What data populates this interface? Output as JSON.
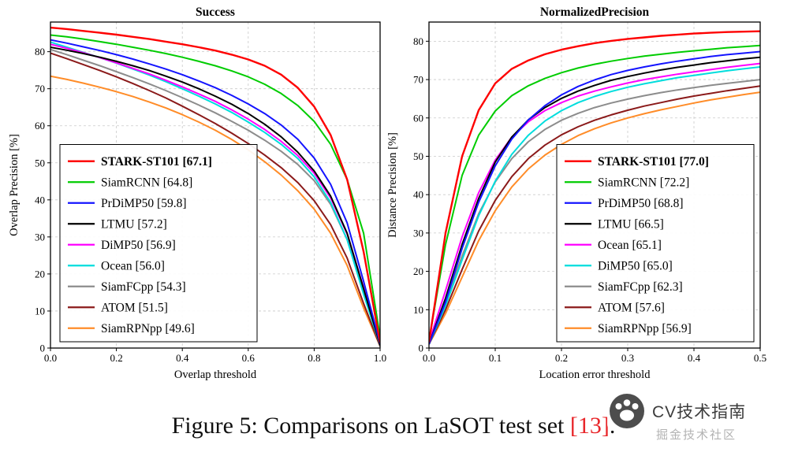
{
  "caption": {
    "prefix": "Figure 5: Comparisons on LaSOT test set ",
    "citation": "[13]",
    "suffix": ".",
    "citation_color": "#e8262a"
  },
  "watermark": {
    "title": "CV技术指南",
    "subtitle": "掘金技术社区"
  },
  "chart_data": [
    {
      "type": "line",
      "title": "Success",
      "xlabel": "Overlap threshold",
      "ylabel": "Overlap Precision [%]",
      "xlim": [
        0,
        1.0
      ],
      "ylim": [
        0,
        88
      ],
      "grid": true,
      "legend_position": "lower-left",
      "xtick_values": [
        0,
        0.2,
        0.4,
        0.6,
        0.8,
        1.0
      ],
      "xtick_labels": [
        "0.0",
        "0.2",
        "0.4",
        "0.6",
        "0.8",
        "1.0"
      ],
      "ytick_values": [
        0,
        10,
        20,
        30,
        40,
        50,
        60,
        70,
        80
      ],
      "ytick_labels": [
        "0",
        "10",
        "20",
        "30",
        "40",
        "50",
        "60",
        "70",
        "80"
      ],
      "x": [
        0,
        0.05,
        0.1,
        0.15,
        0.2,
        0.25,
        0.3,
        0.35,
        0.4,
        0.45,
        0.5,
        0.55,
        0.6,
        0.65,
        0.7,
        0.75,
        0.8,
        0.85,
        0.9,
        0.95,
        1.0
      ],
      "series": [
        {
          "name": "STARK-ST101",
          "score": "67.1",
          "color": "#fe0000",
          "bold": true,
          "values": [
            86.5,
            86.1,
            85.6,
            85.1,
            84.6,
            84.0,
            83.4,
            82.7,
            82.0,
            81.2,
            80.3,
            79.2,
            77.9,
            76.2,
            73.8,
            70.3,
            65.2,
            57.5,
            45.5,
            26.0,
            1.5
          ]
        },
        {
          "name": "SiamRCNN",
          "score": "64.8",
          "color": "#00cc00",
          "bold": false,
          "values": [
            84.5,
            84.0,
            83.4,
            82.7,
            82.0,
            81.2,
            80.4,
            79.5,
            78.5,
            77.4,
            76.2,
            74.8,
            73.2,
            71.2,
            68.7,
            65.5,
            61.2,
            55.0,
            45.5,
            31.0,
            3.0
          ]
        },
        {
          "name": "PrDiMP50",
          "score": "59.8",
          "color": "#1414ff",
          "bold": false,
          "values": [
            83.2,
            82.3,
            81.3,
            80.3,
            79.2,
            78.0,
            76.7,
            75.3,
            73.8,
            72.1,
            70.3,
            68.2,
            65.9,
            63.3,
            60.2,
            56.4,
            51.3,
            44.2,
            33.8,
            18.0,
            1.2
          ]
        },
        {
          "name": "LTMU",
          "score": "57.2",
          "color": "#000000",
          "bold": false,
          "values": [
            81.2,
            80.4,
            79.5,
            78.5,
            77.4,
            76.2,
            74.9,
            73.4,
            71.8,
            70.0,
            68.0,
            65.8,
            63.3,
            60.4,
            57.0,
            52.9,
            47.8,
            41.0,
            31.0,
            16.0,
            0.8
          ]
        },
        {
          "name": "DiMP50",
          "score": "56.9",
          "color": "#ff00ff",
          "bold": false,
          "values": [
            82.0,
            80.9,
            79.7,
            78.4,
            77.0,
            75.5,
            74.0,
            72.3,
            70.5,
            68.6,
            66.6,
            64.3,
            61.8,
            59.0,
            55.8,
            52.0,
            47.2,
            40.5,
            30.8,
            16.3,
            0.9
          ]
        },
        {
          "name": "Ocean",
          "score": "56.0",
          "color": "#00dddd",
          "bold": false,
          "values": [
            82.6,
            81.2,
            79.8,
            78.4,
            76.9,
            75.3,
            73.7,
            71.9,
            70.0,
            68.0,
            65.9,
            63.6,
            61.0,
            58.2,
            55.0,
            51.2,
            46.2,
            39.3,
            29.3,
            14.5,
            0.7
          ]
        },
        {
          "name": "SiamFCpp",
          "score": "54.3",
          "color": "#8c8c8c",
          "bold": false,
          "values": [
            80.6,
            79.2,
            77.7,
            76.2,
            74.6,
            73.0,
            71.3,
            69.5,
            67.6,
            65.6,
            63.5,
            61.2,
            58.8,
            56.1,
            53.1,
            49.6,
            45.2,
            38.8,
            29.3,
            15.0,
            0.8
          ]
        },
        {
          "name": "ATOM",
          "score": "51.5",
          "color": "#8b1a1a",
          "bold": false,
          "values": [
            79.6,
            78.1,
            76.5,
            74.9,
            73.2,
            71.4,
            69.5,
            67.5,
            65.3,
            63.0,
            60.6,
            58.0,
            55.2,
            52.1,
            48.7,
            44.7,
            39.8,
            33.3,
            24.3,
            12.0,
            0.5
          ]
        },
        {
          "name": "SiamRPNpp",
          "score": "49.6",
          "color": "#ff8c28",
          "bold": false,
          "values": [
            73.4,
            72.5,
            71.5,
            70.4,
            69.2,
            67.9,
            66.4,
            64.8,
            63.0,
            61.0,
            58.8,
            56.3,
            53.5,
            50.3,
            46.7,
            42.5,
            37.5,
            31.0,
            22.3,
            10.8,
            0.5
          ]
        }
      ]
    },
    {
      "type": "line",
      "title": "NormalizedPrecision",
      "xlabel": "Location error threshold",
      "ylabel": "Distance Precision [%]",
      "xlim": [
        0,
        0.5
      ],
      "ylim": [
        0,
        85
      ],
      "grid": true,
      "legend_position": "lower-right",
      "xtick_values": [
        0,
        0.1,
        0.2,
        0.3,
        0.4,
        0.5
      ],
      "xtick_labels": [
        "0.0",
        "0.1",
        "0.2",
        "0.3",
        "0.4",
        "0.5"
      ],
      "ytick_values": [
        0,
        10,
        20,
        30,
        40,
        50,
        60,
        70,
        80
      ],
      "ytick_labels": [
        "0",
        "10",
        "20",
        "30",
        "40",
        "50",
        "60",
        "70",
        "80"
      ],
      "x": [
        0,
        0.025,
        0.05,
        0.075,
        0.1,
        0.125,
        0.15,
        0.175,
        0.2,
        0.225,
        0.25,
        0.275,
        0.3,
        0.325,
        0.35,
        0.375,
        0.4,
        0.425,
        0.45,
        0.475,
        0.5
      ],
      "series": [
        {
          "name": "STARK-ST101",
          "score": "77.0",
          "color": "#fe0000",
          "bold": true,
          "values": [
            1.5,
            30.0,
            50.0,
            62.0,
            69.0,
            72.8,
            75.0,
            76.6,
            77.8,
            78.7,
            79.5,
            80.1,
            80.6,
            81.0,
            81.4,
            81.7,
            82.0,
            82.2,
            82.4,
            82.5,
            82.6
          ]
        },
        {
          "name": "SiamRCNN",
          "score": "72.2",
          "color": "#00cc00",
          "bold": false,
          "values": [
            2.0,
            27.0,
            45.0,
            55.5,
            61.8,
            65.8,
            68.4,
            70.3,
            71.8,
            73.0,
            74.0,
            74.8,
            75.5,
            76.1,
            76.6,
            77.1,
            77.5,
            77.9,
            78.3,
            78.6,
            78.9
          ]
        },
        {
          "name": "PrDiMP50",
          "score": "68.8",
          "color": "#1414ff",
          "bold": false,
          "values": [
            1.0,
            12.0,
            26.0,
            38.0,
            47.5,
            54.5,
            59.5,
            63.2,
            66.0,
            68.2,
            69.9,
            71.3,
            72.4,
            73.3,
            74.1,
            74.8,
            75.4,
            76.0,
            76.5,
            76.9,
            77.3
          ]
        },
        {
          "name": "LTMU",
          "score": "66.5",
          "color": "#000000",
          "bold": false,
          "values": [
            1.0,
            13.0,
            27.0,
            39.0,
            48.5,
            55.0,
            59.5,
            62.7,
            65.1,
            67.0,
            68.5,
            69.8,
            70.8,
            71.7,
            72.5,
            73.2,
            73.8,
            74.4,
            74.9,
            75.4,
            75.8
          ]
        },
        {
          "name": "Ocean",
          "score": "65.1",
          "color": "#ff00ff",
          "bold": false,
          "values": [
            1.5,
            15.0,
            29.0,
            40.5,
            49.0,
            55.0,
            59.0,
            61.9,
            64.0,
            65.7,
            67.0,
            68.1,
            69.1,
            70.0,
            70.7,
            71.4,
            72.0,
            72.6,
            73.2,
            73.7,
            74.2
          ]
        },
        {
          "name": "DiMP50",
          "score": "65.0",
          "color": "#00dddd",
          "bold": false,
          "values": [
            1.0,
            11.0,
            23.0,
            34.5,
            43.5,
            50.5,
            55.5,
            59.2,
            61.9,
            64.0,
            65.6,
            66.9,
            68.0,
            68.9,
            69.7,
            70.5,
            71.1,
            71.7,
            72.3,
            72.8,
            73.3
          ]
        },
        {
          "name": "SiamFCpp",
          "score": "62.3",
          "color": "#8c8c8c",
          "bold": false,
          "values": [
            1.0,
            12.0,
            24.0,
            35.0,
            43.3,
            49.4,
            53.8,
            57.0,
            59.4,
            61.2,
            62.7,
            63.9,
            64.9,
            65.8,
            66.6,
            67.3,
            67.9,
            68.5,
            69.0,
            69.5,
            70.0
          ]
        },
        {
          "name": "ATOM",
          "score": "57.6",
          "color": "#8b1a1a",
          "bold": false,
          "values": [
            1.0,
            10.0,
            20.5,
            30.5,
            38.5,
            44.7,
            49.4,
            52.9,
            55.6,
            57.7,
            59.4,
            60.8,
            62.0,
            63.1,
            64.0,
            64.9,
            65.7,
            66.4,
            67.1,
            67.7,
            68.3
          ]
        },
        {
          "name": "SiamRPNpp",
          "score": "56.9",
          "color": "#ff8c28",
          "bold": false,
          "values": [
            1.0,
            9.0,
            18.5,
            28.0,
            35.8,
            42.0,
            46.7,
            50.3,
            53.1,
            55.4,
            57.2,
            58.7,
            60.0,
            61.1,
            62.1,
            63.0,
            63.9,
            64.7,
            65.4,
            66.1,
            66.7
          ]
        }
      ]
    }
  ]
}
